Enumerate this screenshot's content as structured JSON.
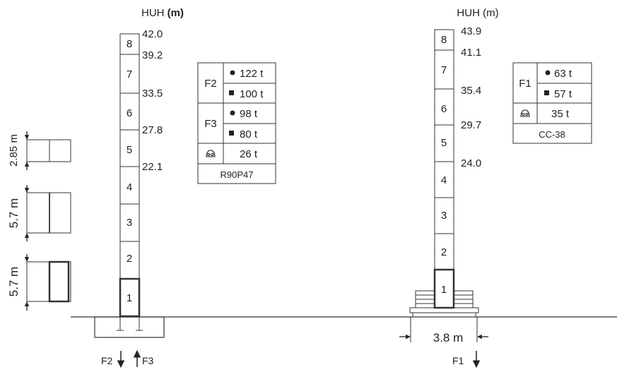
{
  "left": {
    "title_prefix": "HUH ",
    "title_unit": "(m)",
    "segments": [
      "1",
      "2",
      "3",
      "4",
      "5",
      "6",
      "7",
      "8"
    ],
    "heights": [
      "42.0",
      "39.2",
      "33.5",
      "27.8",
      "22.1"
    ],
    "table": {
      "name": "R90P47",
      "rows": [
        {
          "label": "F2",
          "values": [
            "122 t",
            "100 t"
          ]
        },
        {
          "label": "F3",
          "values": [
            "98 t",
            "80 t"
          ]
        }
      ],
      "last_value": "26 t"
    },
    "forces": [
      "F2",
      "F3"
    ]
  },
  "right": {
    "title": "HUH (m)",
    "segments": [
      "1",
      "2",
      "3",
      "4",
      "5",
      "6",
      "7",
      "8"
    ],
    "heights": [
      "43.9",
      "41.1",
      "35.4",
      "29.7",
      "24.0"
    ],
    "table": {
      "name": "CC-38",
      "rows": [
        {
          "label": "F1",
          "values": [
            "63 t",
            "57 t"
          ]
        }
      ],
      "last_value": "35 t"
    },
    "base_width": "3.8 m",
    "forces": [
      "F1"
    ]
  },
  "legend_segments": [
    "2.85 m",
    "5.7 m",
    "5.7 m"
  ]
}
